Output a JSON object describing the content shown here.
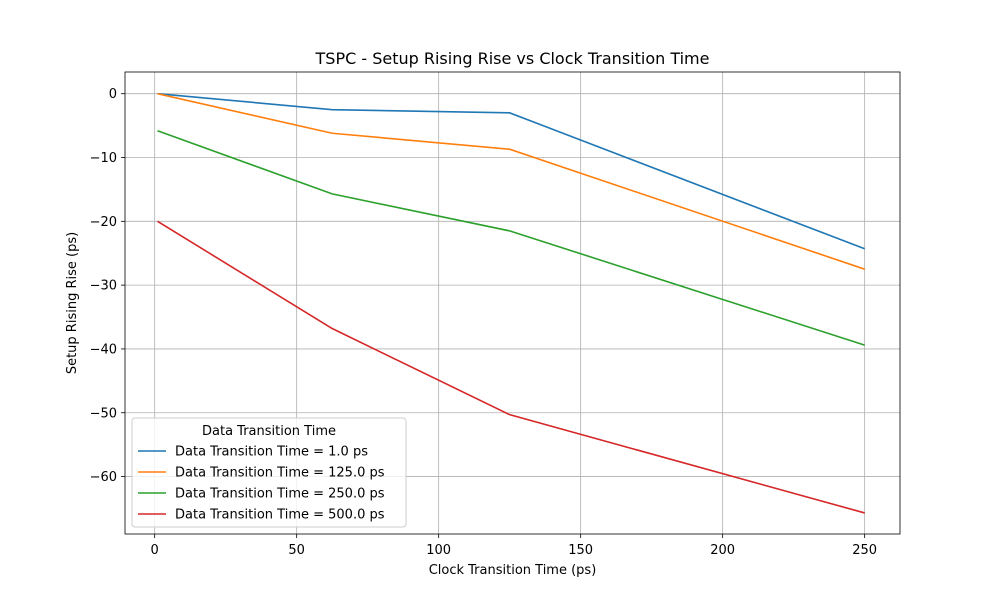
{
  "chart_data": {
    "type": "line",
    "title": "TSPC - Setup Rising Rise vs Clock Transition Time",
    "xlabel": "Clock Transition Time (ps)",
    "ylabel": "Setup Rising Rise (ps)",
    "xlim": [
      -10.45,
      262.45
    ],
    "ylim": [
      -69.0,
      3.4
    ],
    "xticks": [
      0,
      50,
      100,
      150,
      200,
      250
    ],
    "yticks": [
      0,
      -10,
      -20,
      -30,
      -40,
      -50,
      -60
    ],
    "xtick_labels": [
      "0",
      "50",
      "100",
      "150",
      "200",
      "250"
    ],
    "ytick_labels": [
      "0",
      "−10",
      "−20",
      "−30",
      "−40",
      "−50",
      "−60"
    ],
    "grid": true,
    "legend": {
      "title": "Data Transition Time",
      "placement": "lower-left"
    },
    "x": [
      1,
      62.5,
      125,
      250
    ],
    "series": [
      {
        "name": "Data Transition Time = 1.0 ps",
        "color": "#1f77b4",
        "values": [
          0.0,
          -2.5,
          -3.0,
          -24.3
        ]
      },
      {
        "name": "Data Transition Time = 125.0 ps",
        "color": "#ff7f0e",
        "values": [
          0.0,
          -6.2,
          -8.7,
          -27.5
        ]
      },
      {
        "name": "Data Transition Time = 250.0 ps",
        "color": "#2ca02c",
        "values": [
          -5.8,
          -15.7,
          -21.5,
          -39.4
        ]
      },
      {
        "name": "Data Transition Time = 500.0 ps",
        "color": "#d62728",
        "values": [
          -20.0,
          -36.8,
          -50.3,
          -65.7
        ]
      }
    ]
  }
}
